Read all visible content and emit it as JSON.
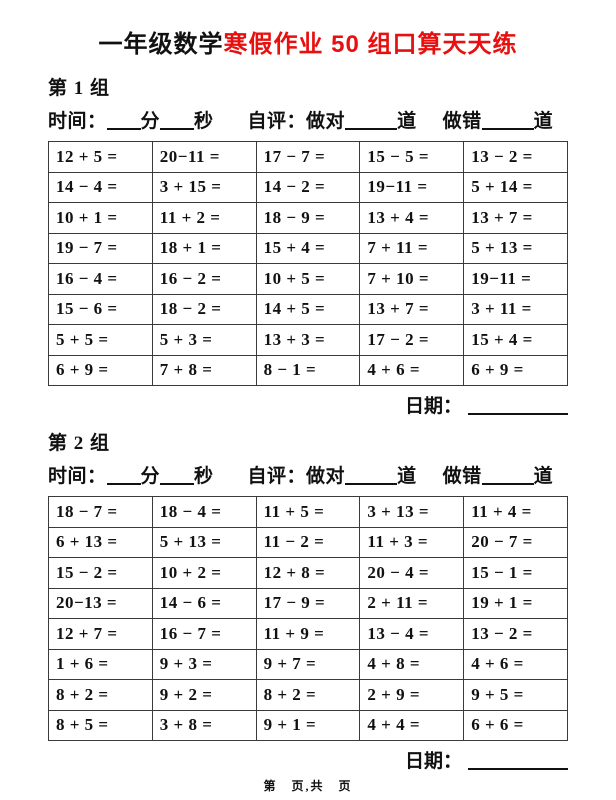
{
  "page": {
    "title_black": "一年级数学",
    "title_red": "寒假作业 50 组口算天天练",
    "footer": "第　页,共　页",
    "colors": {
      "title_red": "#e80f0f",
      "ink": "#111111",
      "table_border": "#3a3a3a"
    }
  },
  "sections": [
    {
      "group_label": "第 1 组",
      "meta": {
        "time_label": "时间：",
        "minutes_unit": "分",
        "seconds_unit": "秒",
        "self_eval_label": "自评：做对",
        "correct_unit": "道",
        "wrong_label": "做错",
        "wrong_unit": "道"
      },
      "date_label": "日期：",
      "problems": [
        [
          "12 + 5 =",
          "20−11 =",
          "17 − 7 =",
          "15 − 5 =",
          "13 − 2 ="
        ],
        [
          "14 − 4 =",
          "3 + 15 =",
          "14 − 2 =",
          "19−11 =",
          "5 + 14 ="
        ],
        [
          "10 + 1 =",
          "11 + 2 =",
          "18 − 9 =",
          "13 + 4 =",
          "13 + 7 ="
        ],
        [
          "19 − 7 =",
          "18 + 1 =",
          "15 + 4 =",
          "7 + 11 =",
          "5 + 13 ="
        ],
        [
          "16 − 4 =",
          "16 − 2 =",
          "10 + 5 =",
          "7 + 10 =",
          "19−11 ="
        ],
        [
          "15 − 6 =",
          "18 − 2 =",
          "14 + 5 =",
          "13 + 7 =",
          "3 + 11 ="
        ],
        [
          "5 + 5 =",
          "5 + 3 =",
          "13 + 3 =",
          "17 − 2 =",
          "15 + 4 ="
        ],
        [
          "6 + 9 =",
          "7 + 8 =",
          "8 − 1 =",
          "4 + 6 =",
          "6 + 9 ="
        ]
      ]
    },
    {
      "group_label": "第 2 组",
      "meta": {
        "time_label": "时间：",
        "minutes_unit": "分",
        "seconds_unit": "秒",
        "self_eval_label": "自评：做对",
        "correct_unit": "道",
        "wrong_label": "做错",
        "wrong_unit": "道"
      },
      "date_label": "日期：",
      "problems": [
        [
          "18 − 7 =",
          "18 − 4 =",
          "11 + 5 =",
          "3 + 13 =",
          "11 + 4 ="
        ],
        [
          "6 + 13 =",
          "5 + 13 =",
          "11 − 2 =",
          "11 + 3 =",
          "20 − 7 ="
        ],
        [
          "15 − 2 =",
          "10 + 2 =",
          "12 + 8 =",
          "20 − 4 =",
          "15 − 1 ="
        ],
        [
          "20−13 =",
          "14 − 6 =",
          "17 − 9 =",
          "2 + 11 =",
          "19 + 1 ="
        ],
        [
          "12 + 7 =",
          "16 − 7 =",
          "11 + 9 =",
          "13 − 4 =",
          "13 − 2 ="
        ],
        [
          "1 + 6 =",
          "9 + 3 =",
          "9 + 7 =",
          "4 + 8 =",
          "4 + 6 ="
        ],
        [
          "8 + 2 =",
          "9 + 2 =",
          "8 + 2 =",
          "2 + 9 =",
          "9 + 5 ="
        ],
        [
          "8 + 5 =",
          "3 + 8 =",
          "9 + 1 =",
          "4 + 4 =",
          "6 + 6 ="
        ]
      ]
    }
  ]
}
